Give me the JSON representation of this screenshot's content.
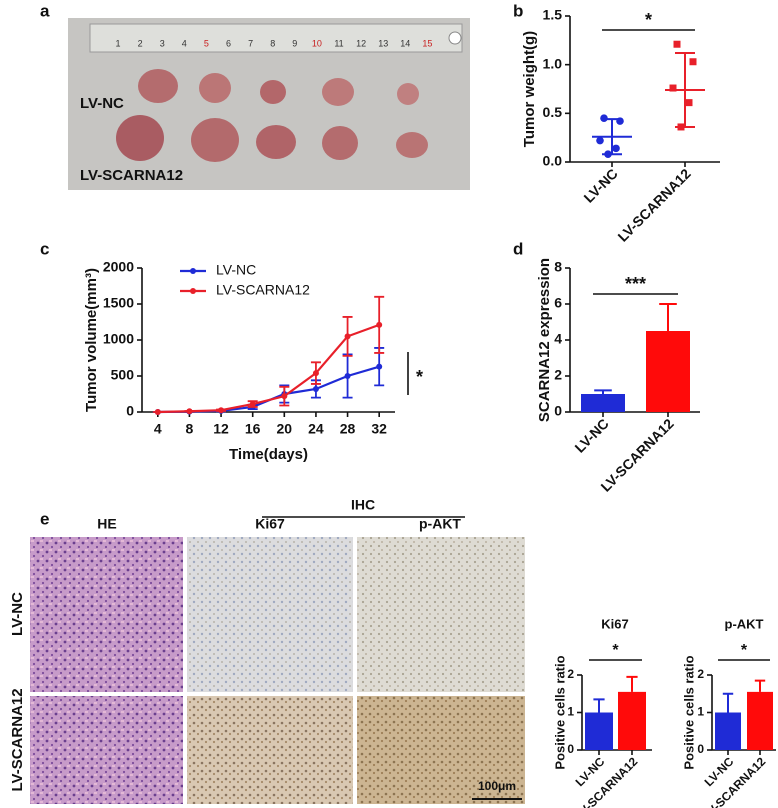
{
  "figure": {
    "panel_a": {
      "label": "a",
      "ruler_labels": [
        1,
        2,
        3,
        4,
        5,
        6,
        7,
        8,
        9,
        10,
        11,
        12,
        13,
        14,
        15
      ],
      "row_labels": [
        "LV-NC",
        "LV-SCARNA12"
      ]
    },
    "panel_e": {
      "label": "e",
      "group_label": "IHC",
      "column_labels": [
        "HE",
        "Ki67",
        "p-AKT"
      ],
      "row_labels": [
        "LV-NC",
        "LV-SCARNA12"
      ],
      "scale_bar": "100μm"
    }
  },
  "chart_data": [
    {
      "type": "scatter",
      "panel_label": "b",
      "y_label": "Tumor weight(g)",
      "categories": [
        "LV-NC",
        "LV-SCARNA12"
      ],
      "groups": [
        {
          "color": "#1f2bd6",
          "marker": "circle",
          "values": [
            0.45,
            0.42,
            0.22,
            0.14,
            0.08
          ],
          "mean": 0.26,
          "sd": 0.18
        },
        {
          "color": "#e8202a",
          "marker": "square",
          "values": [
            1.21,
            1.03,
            0.76,
            0.61,
            0.36
          ],
          "mean": 0.74,
          "sd": 0.38
        }
      ],
      "ylim": [
        0,
        1.5
      ],
      "yticks": [
        {
          "value": 0,
          "label": "0.0"
        },
        0.5,
        {
          "value": 1,
          "label": "1.0"
        },
        1.5
      ],
      "annotation": "*"
    },
    {
      "type": "line",
      "panel_label": "c",
      "x_label": "Time(days)",
      "y_label": "Tumor volume(mm³)",
      "x": [
        4,
        8,
        12,
        16,
        20,
        24,
        28,
        32
      ],
      "xlim": [
        2,
        34
      ],
      "xticks": [
        4,
        8,
        12,
        16,
        20,
        24,
        28,
        32
      ],
      "ylim": [
        0,
        2000
      ],
      "yticks": [
        0,
        500,
        1000,
        1500,
        2000
      ],
      "series": [
        {
          "name": "LV-NC",
          "color": "#1f2bd6",
          "values": [
            0,
            5,
            15,
            70,
            250,
            320,
            500,
            630
          ],
          "errors": [
            0,
            3,
            8,
            30,
            120,
            120,
            300,
            260
          ]
        },
        {
          "name": "LV-SCARNA12",
          "color": "#e8202a",
          "values": [
            0,
            10,
            25,
            110,
            220,
            540,
            1050,
            1210
          ],
          "errors": [
            0,
            4,
            10,
            40,
            130,
            150,
            270,
            390
          ]
        }
      ],
      "legend": "top-left",
      "annotation": "*"
    },
    {
      "type": "bar",
      "panel_label": "d",
      "y_label": "SCARNA12 expression",
      "categories": [
        "LV-NC",
        "LV-SCARNA12"
      ],
      "values": [
        1.0,
        4.5
      ],
      "errors": [
        0.2,
        1.5
      ],
      "colors": [
        "#1f2bd6",
        "#ff0a0a"
      ],
      "ylim": [
        0,
        8
      ],
      "yticks": [
        0,
        2,
        4,
        6,
        8
      ],
      "annotation": "***"
    },
    {
      "type": "bar",
      "title": "Ki67",
      "y_label": "Positive cells ratio",
      "categories": [
        "LV-NC",
        "LV-SCARNA12"
      ],
      "values": [
        1.0,
        1.55
      ],
      "errors": [
        0.35,
        0.4
      ],
      "colors": [
        "#1f2bd6",
        "#ff0a0a"
      ],
      "ylim": [
        0,
        2
      ],
      "yticks": [
        0,
        1,
        2
      ],
      "annotation": "*"
    },
    {
      "type": "bar",
      "title": "p-AKT",
      "y_label": "Positive cells ratio",
      "categories": [
        "LV-NC",
        "LV-SCARNA12"
      ],
      "values": [
        1.0,
        1.55
      ],
      "errors": [
        0.5,
        0.3
      ],
      "colors": [
        "#1f2bd6",
        "#ff0a0a"
      ],
      "ylim": [
        0,
        2
      ],
      "yticks": [
        0,
        1,
        2
      ],
      "annotation": "*"
    }
  ]
}
